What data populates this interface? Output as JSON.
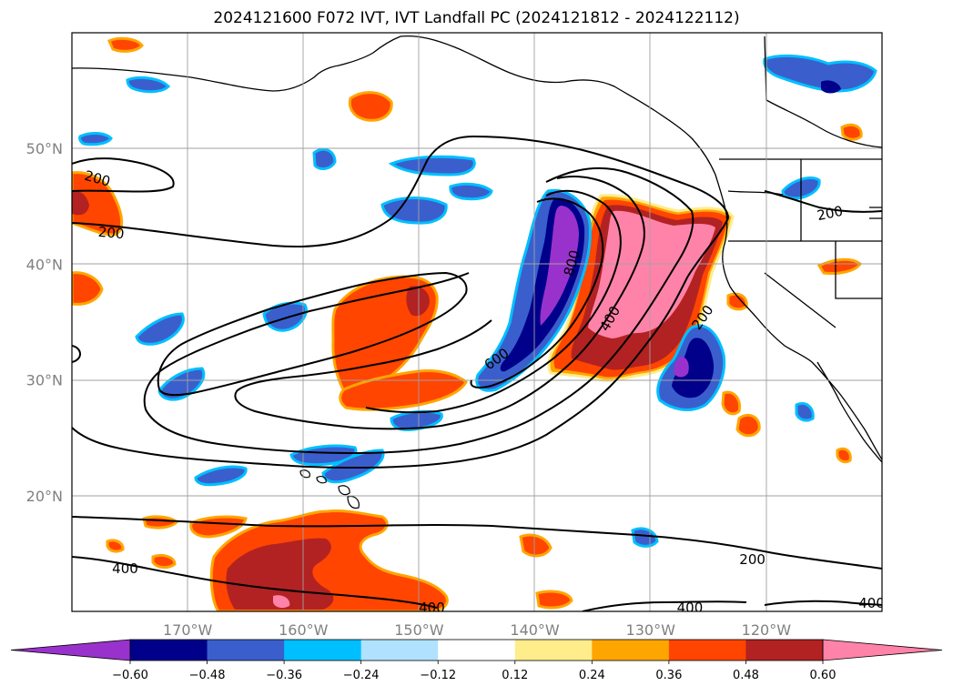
{
  "title": "2024121600 F072 IVT, IVT Landfall PC (2024121812 - 2024122112)",
  "axes": {
    "lat_ticks": [
      {
        "label": "50°N",
        "lat": 50
      },
      {
        "label": "40°N",
        "lat": 40
      },
      {
        "label": "30°N",
        "lat": 30
      },
      {
        "label": "20°N",
        "lat": 20
      }
    ],
    "lon_ticks": [
      {
        "label": "170°W",
        "lon": -170
      },
      {
        "label": "160°W",
        "lon": -160
      },
      {
        "label": "150°W",
        "lon": -150
      },
      {
        "label": "140°W",
        "lon": -140
      },
      {
        "label": "130°W",
        "lon": -130
      },
      {
        "label": "120°W",
        "lon": -120
      }
    ],
    "lon_range": [
      -180,
      -110
    ],
    "lat_range": [
      10,
      60
    ],
    "grid": true
  },
  "colorbar": {
    "colors": [
      "#9932cc",
      "#00008b",
      "#3a5fcd",
      "#00bfff",
      "#b0e2ff",
      "#ffffff",
      "#ffec8b",
      "#ffa500",
      "#ff4500",
      "#b22222",
      "#ff83a8"
    ],
    "tick_labels": [
      "−0.60",
      "−0.48",
      "−0.36",
      "−0.24",
      "−0.12",
      "0.12",
      "0.24",
      "0.36",
      "0.48",
      "0.60"
    ],
    "extend": "both"
  },
  "contour_labels": [
    {
      "text": "200",
      "lon": -177.8,
      "lat": 47.4,
      "rot": 15
    },
    {
      "text": "200",
      "lon": -176.6,
      "lat": 42.7,
      "rot": 5
    },
    {
      "text": "200",
      "lon": -114.5,
      "lat": 44.4,
      "rot": -12
    },
    {
      "text": "200",
      "lon": -125.5,
      "lat": 35.4,
      "rot": -55
    },
    {
      "text": "400",
      "lon": -133.5,
      "lat": 35.3,
      "rot": -60
    },
    {
      "text": "600",
      "lon": -143.3,
      "lat": 31.8,
      "rot": -35
    },
    {
      "text": "800",
      "lon": -136.8,
      "lat": 40.1,
      "rot": -75
    },
    {
      "text": "200",
      "lon": -121.2,
      "lat": 14.5,
      "rot": 0
    },
    {
      "text": "400",
      "lon": -175.4,
      "lat": 13.7,
      "rot": 0
    },
    {
      "text": "400",
      "lon": -148.9,
      "lat": 10.3,
      "rot": 0
    },
    {
      "text": "400",
      "lon": -126.6,
      "lat": 10.3,
      "rot": 0
    },
    {
      "text": "400",
      "lon": -110.9,
      "lat": 10.7,
      "rot": 0
    }
  ]
}
